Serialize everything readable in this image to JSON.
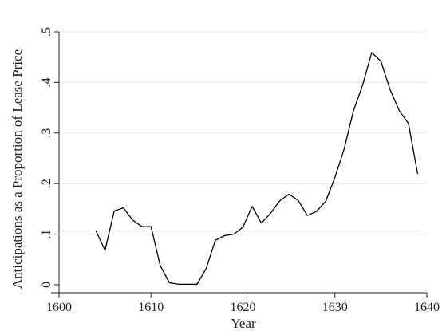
{
  "chart_data": {
    "type": "line",
    "title": "",
    "xlabel": "Year",
    "ylabel": "Anticipations as a Proportion of Lease Price",
    "xlim": [
      1600,
      1640
    ],
    "ylim": [
      0,
      0.5
    ],
    "xticks": [
      1600,
      1610,
      1620,
      1630,
      1640
    ],
    "xtick_labels": [
      "1600",
      "1610",
      "1620",
      "1630",
      "1640"
    ],
    "yticks": [
      0,
      0.1,
      0.2,
      0.3,
      0.4,
      0.5
    ],
    "ytick_labels": [
      "0",
      ".1",
      ".2",
      ".3",
      ".4",
      ".5"
    ],
    "grid": "horizontal",
    "legend": "none",
    "series": [
      {
        "color": "#000000",
        "x": [
          1604,
          1605,
          1606,
          1607,
          1608,
          1609,
          1610,
          1611,
          1612,
          1613,
          1614,
          1615,
          1616,
          1617,
          1618,
          1619,
          1620,
          1621,
          1622,
          1623,
          1624,
          1625,
          1626,
          1627,
          1628,
          1629,
          1630,
          1631,
          1632,
          1633,
          1634,
          1635,
          1636,
          1637,
          1638,
          1639
        ],
        "y": [
          0.107,
          0.068,
          0.146,
          0.152,
          0.128,
          0.115,
          0.115,
          0.038,
          0.004,
          0.001,
          0.001,
          0.001,
          0.032,
          0.088,
          0.097,
          0.1,
          0.114,
          0.155,
          0.122,
          0.141,
          0.166,
          0.179,
          0.167,
          0.137,
          0.145,
          0.165,
          0.212,
          0.268,
          0.343,
          0.394,
          0.459,
          0.442,
          0.386,
          0.344,
          0.319,
          0.219
        ]
      }
    ]
  }
}
